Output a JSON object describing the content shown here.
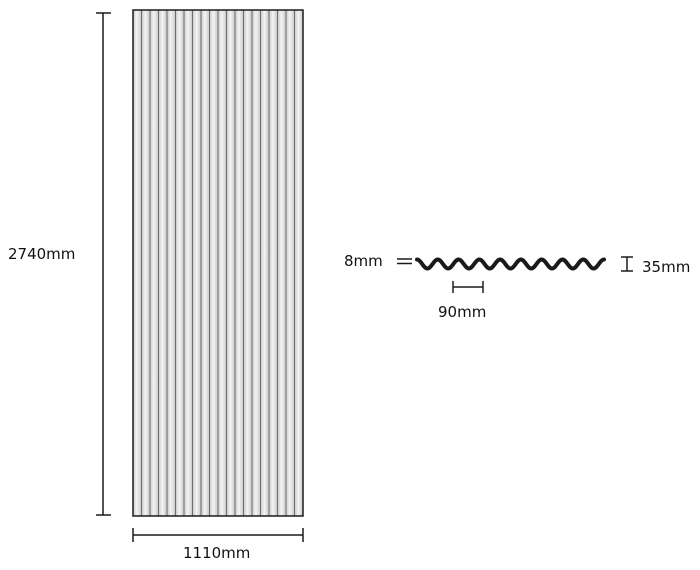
{
  "sheet": {
    "corrugation_count": 20,
    "colors": {
      "line": "#1a1a1a",
      "rib_shade": "#c8c8c8",
      "rib_light": "#f4f4f4",
      "background": "#ffffff"
    }
  },
  "dimensions": {
    "height": "2740mm",
    "width": "1110mm",
    "thickness": "8mm",
    "depth": "35mm",
    "pitch": "90mm"
  },
  "profile": {
    "wave_count": 9
  }
}
